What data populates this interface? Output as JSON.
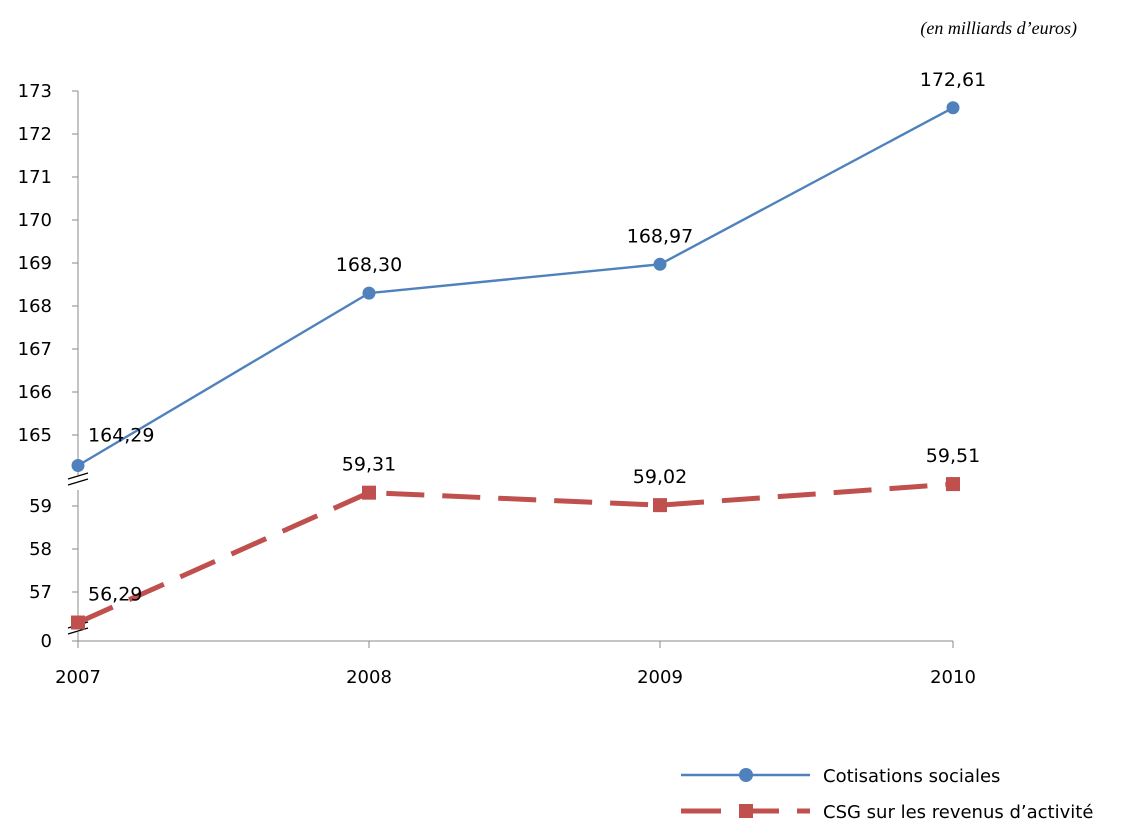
{
  "chart_data": {
    "type": "line",
    "unit_note": "(en milliards d’euros)",
    "categories": [
      "2007",
      "2008",
      "2009",
      "2010"
    ],
    "axis_upper": {
      "ticks": [
        "165",
        "166",
        "167",
        "168",
        "169",
        "170",
        "171",
        "172",
        "173"
      ],
      "range": [
        164.29,
        173
      ]
    },
    "axis_lower": {
      "ticks": [
        "57",
        "58",
        "59"
      ],
      "range": [
        56.29,
        59.31
      ]
    },
    "axis_zero_label": "0",
    "series": [
      {
        "name": "Cotisations sociales",
        "values": [
          164.29,
          168.3,
          168.97,
          172.61
        ],
        "labels": [
          "164,29",
          "168,30",
          "168,97",
          "172,61"
        ],
        "color": "#4f81bd",
        "marker": "circle",
        "style": "solid"
      },
      {
        "name": "CSG sur les revenus d’activité",
        "values": [
          56.29,
          59.31,
          59.02,
          59.51
        ],
        "labels": [
          "56,29",
          "59,31",
          "59,02",
          "59,51"
        ],
        "color": "#c0504d",
        "marker": "square",
        "style": "dashed"
      }
    ],
    "axis_breaks": true,
    "grid": false,
    "legend_position": "bottom-right"
  }
}
